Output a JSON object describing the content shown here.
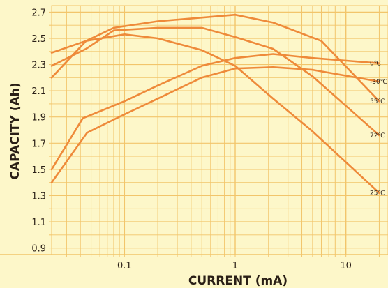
{
  "chart_data": {
    "type": "line",
    "xscale": "log",
    "xlabel": "CURRENT (mA)",
    "ylabel": "CAPACITY (Ah)",
    "xlim": [
      0.022,
      24
    ],
    "ylim": [
      0.85,
      2.75
    ],
    "x_ticks": [
      {
        "value": 0.1,
        "label": "0.1"
      },
      {
        "value": 1,
        "label": "1"
      },
      {
        "value": 10,
        "label": "10"
      }
    ],
    "y_ticks": [
      {
        "value": 0.9,
        "label": "0.9"
      },
      {
        "value": 1.1,
        "label": "1.1"
      },
      {
        "value": 1.3,
        "label": "1.3"
      },
      {
        "value": 1.5,
        "label": "1.5"
      },
      {
        "value": 1.7,
        "label": "1.7"
      },
      {
        "value": 1.9,
        "label": "1.9"
      },
      {
        "value": 2.1,
        "label": "2.1"
      },
      {
        "value": 2.3,
        "label": "2.3"
      },
      {
        "value": 2.5,
        "label": "2.5"
      },
      {
        "value": 2.7,
        "label": "2.7"
      }
    ],
    "grid": true,
    "colors": {
      "background": "#fdf7c9",
      "grid": "#f2c56b",
      "line": "#ee8a3a",
      "text": "#2a1f16"
    },
    "series": [
      {
        "name": "55℃",
        "x": [
          0.022,
          0.045,
          0.08,
          0.2,
          1,
          2.2,
          6,
          20
        ],
        "y": [
          2.2,
          2.48,
          2.58,
          2.63,
          2.68,
          2.62,
          2.48,
          2.02
        ]
      },
      {
        "name": "72℃",
        "x": [
          0.022,
          0.045,
          0.08,
          0.2,
          0.5,
          1,
          2.2,
          5,
          20
        ],
        "y": [
          2.29,
          2.42,
          2.56,
          2.58,
          2.58,
          2.51,
          2.42,
          2.21,
          1.76
        ]
      },
      {
        "name": "25℃",
        "x": [
          0.022,
          0.045,
          0.1,
          0.2,
          0.5,
          1,
          2.2,
          5,
          20
        ],
        "y": [
          2.39,
          2.48,
          2.53,
          2.5,
          2.41,
          2.29,
          2.04,
          1.79,
          1.32
        ]
      },
      {
        "name": "0℃",
        "x": [
          0.022,
          0.042,
          0.1,
          0.2,
          0.5,
          1,
          2.2,
          5,
          20
        ],
        "y": [
          1.5,
          1.89,
          2.02,
          2.14,
          2.29,
          2.35,
          2.38,
          2.35,
          2.31
        ]
      },
      {
        "name": "-30℃",
        "x": [
          0.022,
          0.046,
          0.1,
          0.2,
          0.5,
          1,
          2.2,
          5,
          20
        ],
        "y": [
          1.4,
          1.78,
          1.92,
          2.04,
          2.2,
          2.27,
          2.28,
          2.26,
          2.17
        ]
      }
    ]
  }
}
